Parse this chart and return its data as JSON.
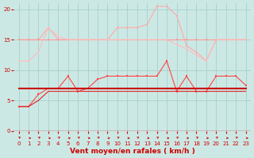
{
  "title": "",
  "xlabel": "Vent moyen/en rafales ( km/h )",
  "xlabel_color": "#cc0000",
  "bg_color": "#cce8e4",
  "grid_color": "#aad4d0",
  "xlim": [
    -0.5,
    23.5
  ],
  "ylim": [
    0,
    21
  ],
  "yticks": [
    0,
    5,
    10,
    15,
    20
  ],
  "xticks": [
    0,
    1,
    2,
    3,
    4,
    5,
    6,
    7,
    8,
    9,
    10,
    11,
    12,
    13,
    14,
    15,
    16,
    17,
    18,
    19,
    20,
    21,
    22,
    23
  ],
  "series": [
    {
      "name": "rafales_high",
      "x": [
        0,
        1,
        2,
        3,
        4,
        5,
        6,
        7,
        8,
        9,
        10,
        11,
        12,
        13,
        14,
        15,
        16,
        17,
        18,
        19,
        20,
        21,
        22,
        23
      ],
      "y": [
        15,
        15,
        15,
        17,
        15,
        15,
        15,
        15,
        15,
        15,
        17,
        17,
        17,
        17.5,
        20.5,
        20.5,
        19,
        14,
        13,
        11.5,
        15,
        15,
        15,
        15
      ],
      "color": "#ffaaaa",
      "linewidth": 0.8,
      "marker": "s",
      "markersize": 2.0,
      "zorder": 2
    },
    {
      "name": "mean_high",
      "x": [
        0,
        1,
        2,
        3,
        4,
        5,
        6,
        7,
        8,
        9,
        10,
        11,
        12,
        13,
        14,
        15,
        16,
        17,
        18,
        19,
        20,
        21,
        22,
        23
      ],
      "y": [
        15,
        15,
        15,
        15,
        15,
        15,
        15,
        15,
        15,
        15,
        15,
        15,
        15,
        15,
        15,
        15,
        15,
        15,
        15,
        15,
        15,
        15,
        15,
        15
      ],
      "color": "#ff9999",
      "linewidth": 0.8,
      "marker": "s",
      "markersize": 2.0,
      "zorder": 2
    },
    {
      "name": "trend_down",
      "x": [
        0,
        1,
        2,
        3,
        4,
        5,
        6,
        7,
        8,
        9,
        10,
        11,
        12,
        13,
        14,
        15,
        16,
        17,
        18,
        19,
        20,
        21,
        22,
        23
      ],
      "y": [
        11.5,
        11.5,
        13,
        17,
        15.5,
        15,
        15,
        15,
        15,
        15,
        15,
        15,
        15,
        15,
        15,
        15,
        14.2,
        13.5,
        12.5,
        11.5,
        15,
        15,
        15,
        15
      ],
      "color": "#ffbbbb",
      "linewidth": 0.8,
      "marker": "s",
      "markersize": 2.0,
      "zorder": 2
    },
    {
      "name": "rafales_low",
      "x": [
        0,
        1,
        2,
        3,
        4,
        5,
        6,
        7,
        8,
        9,
        10,
        11,
        12,
        13,
        14,
        15,
        16,
        17,
        18,
        19,
        20,
        21,
        22,
        23
      ],
      "y": [
        4,
        4,
        6,
        7,
        7,
        9,
        6.5,
        7,
        8.5,
        9,
        9,
        9,
        9,
        9,
        9,
        11.5,
        6.5,
        9,
        6.5,
        6.5,
        9,
        9,
        9,
        7.5
      ],
      "color": "#ff4444",
      "linewidth": 0.8,
      "marker": "s",
      "markersize": 2.0,
      "zorder": 3
    },
    {
      "name": "mean_flat",
      "x": [
        0,
        1,
        2,
        3,
        4,
        5,
        6,
        7,
        8,
        9,
        10,
        11,
        12,
        13,
        14,
        15,
        16,
        17,
        18,
        19,
        20,
        21,
        22,
        23
      ],
      "y": [
        7,
        7,
        7,
        7,
        7,
        7,
        7,
        7,
        7,
        7,
        7,
        7,
        7,
        7,
        7,
        7,
        7,
        7,
        7,
        7,
        7,
        7,
        7,
        7
      ],
      "color": "#cc0000",
      "linewidth": 1.5,
      "marker": "s",
      "markersize": 2.0,
      "zorder": 4
    },
    {
      "name": "mean_rising",
      "x": [
        0,
        1,
        2,
        3,
        4,
        5,
        6,
        7,
        8,
        9,
        10,
        11,
        12,
        13,
        14,
        15,
        16,
        17,
        18,
        19,
        20,
        21,
        22,
        23
      ],
      "y": [
        4,
        4,
        5,
        6.5,
        6.5,
        6.5,
        6.5,
        6.5,
        6.5,
        6.5,
        6.5,
        6.5,
        6.5,
        6.5,
        6.5,
        6.5,
        6.5,
        6.5,
        6.5,
        6.5,
        6.5,
        6.5,
        6.5,
        6.5
      ],
      "color": "#dd2222",
      "linewidth": 0.8,
      "marker": null,
      "markersize": 0,
      "zorder": 3
    }
  ],
  "axhline_y": 0,
  "axhline_color": "#cc0000",
  "axhline_lw": 1.0,
  "tick_label_color": "#cc0000",
  "tick_fontsize": 5.0,
  "xlabel_fontsize": 6.5,
  "xlabel_fontweight": "bold"
}
